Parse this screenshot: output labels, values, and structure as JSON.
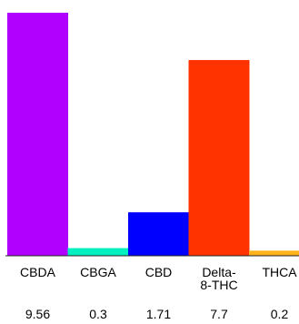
{
  "chart_data": {
    "type": "bar",
    "categories": [
      "CBDA",
      "CBGA",
      "CBD",
      "Delta-8-THC",
      "THCA"
    ],
    "category_lines": [
      [
        "CBDA"
      ],
      [
        "CBGA"
      ],
      [
        "CBD"
      ],
      [
        "Delta-",
        "8-THC"
      ],
      [
        "THCA"
      ]
    ],
    "values": [
      9.56,
      0.3,
      1.71,
      7.7,
      0.2
    ],
    "value_labels": [
      "9.56",
      "0.3",
      "1.71",
      "7.7",
      "0.2"
    ],
    "colors": [
      "#b200ff",
      "#00f0bf",
      "#0000ff",
      "#ff3300",
      "#ffb31a"
    ],
    "title": "",
    "xlabel": "",
    "ylabel": "",
    "ylim": [
      0,
      9.56
    ],
    "grid": false,
    "legend": "none"
  }
}
